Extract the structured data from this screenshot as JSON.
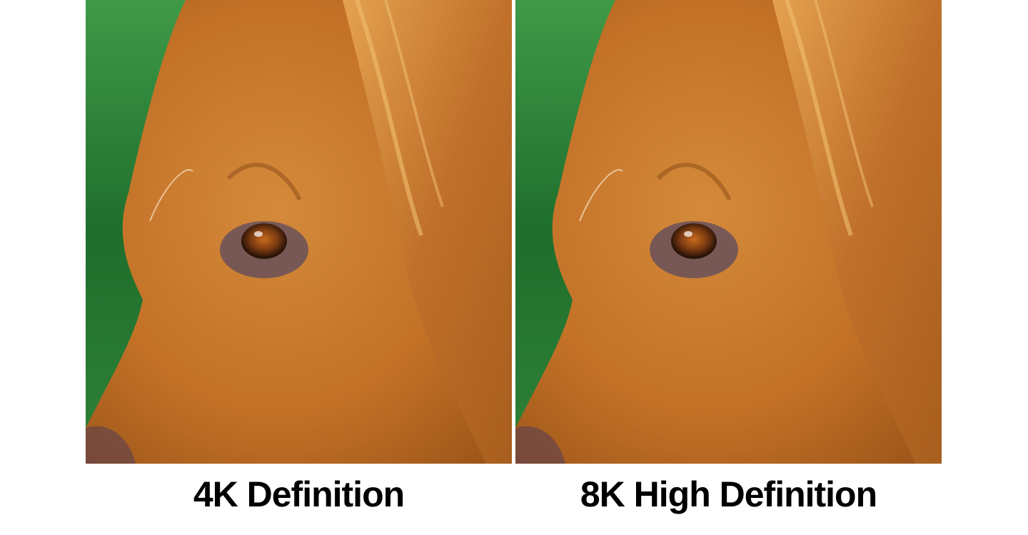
{
  "comparison": {
    "left": {
      "caption": "4K Definition"
    },
    "right": {
      "caption": "8K High Definition"
    }
  },
  "colors": {
    "background": "#ffffff",
    "caption": "#000000",
    "fur": "#c77a2c",
    "backdrop": "#2f8a3a"
  }
}
